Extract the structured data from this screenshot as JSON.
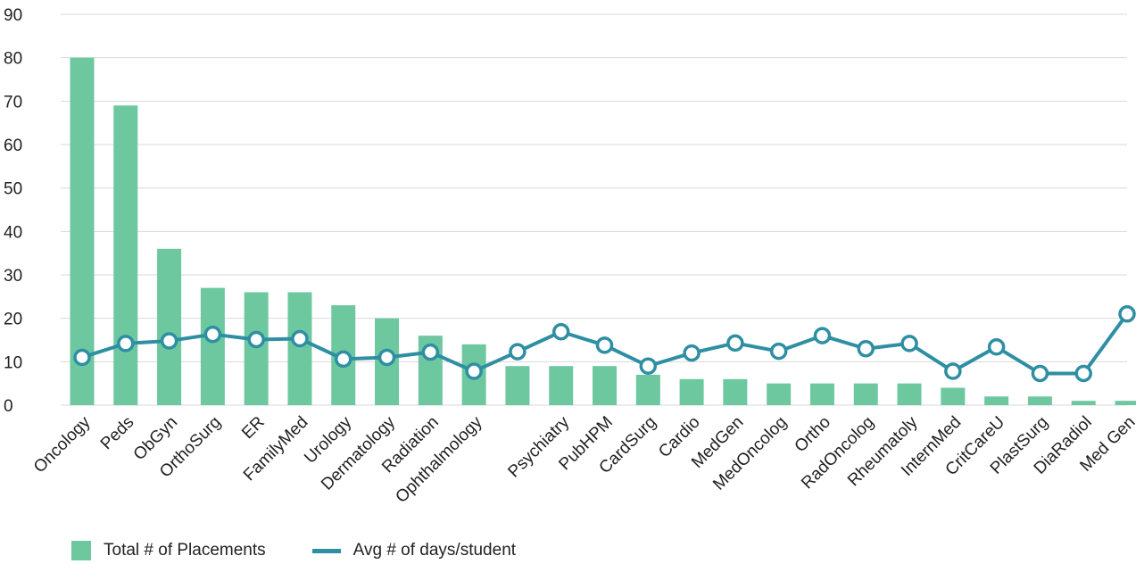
{
  "chart_data": {
    "type": "bar",
    "categories": [
      "Oncology",
      "Peds",
      "ObGyn",
      "OrthoSurg",
      "ER",
      "FamilyMed",
      "Urology",
      "Dermatology",
      "Radiation",
      "Ophthalmology",
      "",
      "Psychiatry",
      "PubHPM",
      "CardSurg",
      "Cardio",
      "MedGen",
      "MedOncolog",
      "Ortho",
      "RadOncolog",
      "Rheumatoly",
      "InternMed",
      "CritCareU",
      "PlastSurg",
      "DiaRadiol",
      "Med Gen"
    ],
    "series": [
      {
        "name": "Total # of Placements",
        "type": "bar",
        "values": [
          80,
          69,
          36,
          27,
          26,
          26,
          23,
          20,
          16,
          14,
          9,
          9,
          9,
          7,
          6,
          6,
          5,
          5,
          5,
          5,
          4,
          2,
          2,
          1,
          1
        ]
      },
      {
        "name": "Avg # of days/student",
        "type": "line",
        "values": [
          11,
          14.2,
          14.8,
          16.3,
          15.1,
          15.3,
          10.6,
          11,
          12.2,
          7.8,
          12.3,
          16.9,
          13.8,
          9,
          12,
          14.3,
          12.4,
          16,
          13,
          14.2,
          7.8,
          13.4,
          7.3,
          7.3,
          21
        ]
      }
    ],
    "ylim": [
      0,
      90
    ],
    "yticks": [
      "0",
      "10",
      "20",
      "30",
      "40",
      "50",
      "60",
      "70",
      "80",
      "90"
    ],
    "grid": true,
    "legend_position": "bottom",
    "colors": {
      "bar": "#6dc8a0",
      "line": "#2e8fa3",
      "marker_fill": "#ffffff",
      "grid": "#d9d9d9"
    }
  },
  "legend": {
    "bar_label": "Total # of Placements",
    "line_label": "Avg # of days/student"
  }
}
